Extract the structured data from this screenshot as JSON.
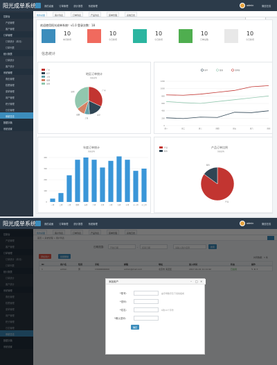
{
  "app": {
    "logo": "阳光成单系统",
    "status": "微信在线"
  },
  "topnav": [
    "我的桌面",
    "订单管理",
    "统计报表",
    "系统管理"
  ],
  "user": {
    "name": "admin",
    "dropdown": [
      "个人信息",
      "切换账号",
      "退出"
    ]
  },
  "sidebar": {
    "screen1": [
      "控制台",
      "产品管理",
      "客户管理",
      "订单管理",
      "订单统计（本月）",
      "订单列表",
      "统计报表",
      "订单统计",
      "客户统计",
      "系统管理",
      "角色管理",
      "权限管理",
      "菜单管理",
      "用户管理",
      "积分管理",
      "日志管理",
      "系统日志",
      "数据字典",
      "系统设置"
    ],
    "screen2": [
      "控制台",
      "产品管理",
      "客户管理",
      "订单管理",
      "订单统计（本月）",
      "订单列表",
      "统计报表",
      "订单统计",
      "客户统计",
      "系统管理",
      "角色管理",
      "权限管理",
      "菜单管理",
      "用户管理",
      "积分管理",
      "日志管理",
      "系统日志",
      "数据字典",
      "系统设置"
    ]
  },
  "tabs": [
    "我的桌面",
    "客户列表",
    "订单列表",
    "产品列表",
    "菜单管理",
    "系统日志"
  ],
  "welcome": "欢迎使用阳光成单系统！v1.0  登录次数：18",
  "stat_cards": [
    {
      "value": "10",
      "label": "本月新增",
      "color": "#3c8dbc",
      "icon": "clipboard-icon"
    },
    {
      "value": "10",
      "label": "今日新增",
      "color": "#f06a5e",
      "icon": "car-icon"
    },
    {
      "value": "10",
      "label": "今日新增",
      "color": "#2bb5a0",
      "icon": "bar-chart-icon"
    },
    {
      "value": "10",
      "label": "订单总数",
      "color": "#4fae4f",
      "icon": "users-icon"
    },
    {
      "value": "10",
      "label": "今日新增",
      "color": "#e8e8e8",
      "icon": "empty-icon"
    }
  ],
  "section_title": "信息统计",
  "chart_data": [
    {
      "type": "pie",
      "title": "地区订单统计",
      "subtitle": "纯属虚构",
      "categories": [
        "广州",
        "北京",
        "上海",
        "成都",
        "深圳"
      ],
      "values": [
        32,
        17,
        6,
        10,
        35
      ],
      "colors": [
        "#c23531",
        "#2f4554",
        "#61a0a8",
        "#d48265",
        "#91c7ae"
      ],
      "legend": "top-left"
    },
    {
      "type": "line",
      "title": "",
      "categories": [
        "周一",
        "周二",
        "周三",
        "周四",
        "周五",
        "周六",
        "周日"
      ],
      "series": [
        {
          "name": "客单",
          "values": [
            210,
            190,
            230,
            220,
            360,
            350,
            400
          ],
          "color": "#2f4554"
        },
        {
          "name": "散客",
          "values": [
            650,
            620,
            600,
            650,
            700,
            750,
            800
          ],
          "color": "#91c7ae"
        },
        {
          "name": "团体客",
          "values": [
            830,
            820,
            850,
            900,
            950,
            1050,
            1080
          ],
          "color": "#c23531"
        }
      ],
      "ylim": [
        0,
        1200
      ],
      "yticks": [
        0,
        200,
        400,
        600,
        800,
        1000,
        1200
      ],
      "legend": "top"
    },
    {
      "type": "bar",
      "title": "年度订单统计",
      "subtitle": "纯属虚构",
      "categories": [
        "一月",
        "二月",
        "三月",
        "四月",
        "五月",
        "六月",
        "七月",
        "八月",
        "九月",
        "十月",
        "十一月",
        "十二月"
      ],
      "values": [
        30,
        80,
        240,
        380,
        400,
        380,
        310,
        370,
        410,
        380,
        280,
        300
      ],
      "ylim": [
        0,
        400
      ],
      "yticks": [
        0,
        100,
        200,
        300,
        400
      ],
      "color": "#3a96d8"
    },
    {
      "type": "pie",
      "title": "产品订单比例",
      "subtitle": "纯属虚构",
      "categories": [
        "产品",
        "服务"
      ],
      "values": [
        85,
        15
      ],
      "colors": [
        "#c23531",
        "#2f4554"
      ],
      "legend": "top-left"
    }
  ],
  "screen2": {
    "breadcrumb": "首页 > 系统管理 > 用户列表",
    "search_labels": [
      "日期范围：",
      "-",
      "用户名"
    ],
    "search_placeholders": [
      "开始日期",
      "结束日期",
      "请输入用户名称"
    ],
    "search_button": "搜索",
    "toolbar": {
      "add": "添加用户",
      "delete": "批量删除",
      "count": "共有数据：1 条"
    },
    "table_headers": [
      "ID",
      "用户名",
      "性别",
      "手机",
      "邮箱",
      "地址",
      "加入时间",
      "状态",
      "操作"
    ],
    "table_row": [
      "1",
      "admin",
      "男",
      "13000000000",
      "admin@mail.com",
      "北京市 海淀区",
      "2017-01-01 11:11:42",
      "已启用",
      "✎ ⚙ ✕"
    ],
    "modal": {
      "title": "添加用户",
      "labels": [
        "*账号：",
        "*密码：",
        "*姓名：",
        "*确认密码："
      ],
      "hints": [
        "由字母数字及下划线组成",
        "",
        "6到16个字符",
        ""
      ],
      "submit": "确定"
    }
  }
}
